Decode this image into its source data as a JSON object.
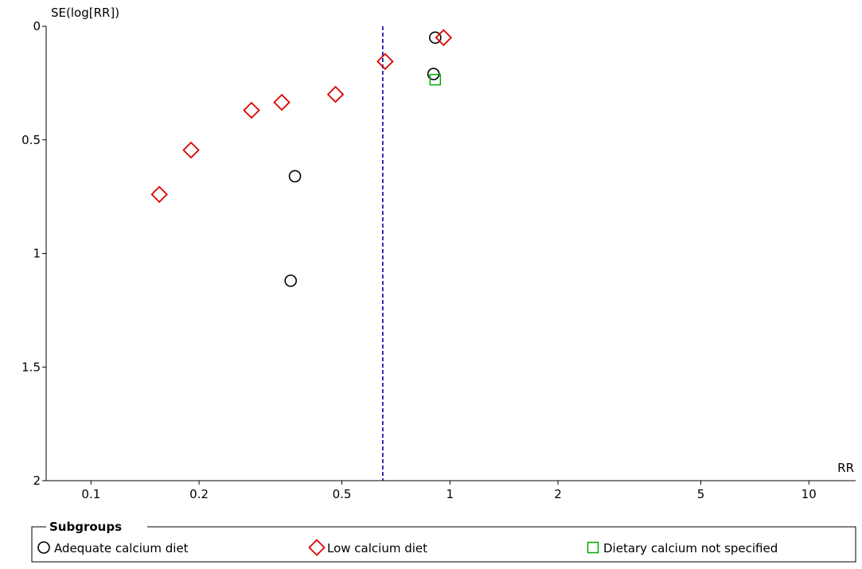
{
  "chart_data": {
    "type": "scatter",
    "subtype": "funnel-plot",
    "xlabel": "RR",
    "ylabel": "SE(log[RR])",
    "x_scale": "log",
    "xlim": [
      0.075,
      13.5
    ],
    "ylim": [
      0,
      2
    ],
    "y_reversed": true,
    "x_ticks": [
      0.1,
      0.2,
      0.5,
      1,
      2,
      5,
      10
    ],
    "x_tick_labels": [
      "0.1",
      "0.2",
      "0.5",
      "1",
      "2",
      "5",
      "10"
    ],
    "y_ticks": [
      0,
      0.5,
      1,
      1.5,
      2
    ],
    "y_tick_labels": [
      "0",
      "0.5",
      "1",
      "1.5",
      "2"
    ],
    "reference_line": {
      "x": 0.65,
      "style": "dashed",
      "color": "#0000aa"
    },
    "legend": {
      "title": "Subgroups",
      "placement": "bottom"
    },
    "series": [
      {
        "name": "Adequate calcium diet",
        "marker": "circle",
        "color": "#000000",
        "points": [
          {
            "x": 0.91,
            "y": 0.05
          },
          {
            "x": 0.9,
            "y": 0.21
          },
          {
            "x": 0.37,
            "y": 0.66
          },
          {
            "x": 0.36,
            "y": 1.12
          }
        ]
      },
      {
        "name": "Low calcium diet",
        "marker": "diamond",
        "color": "#dd0000",
        "points": [
          {
            "x": 0.96,
            "y": 0.05
          },
          {
            "x": 0.66,
            "y": 0.155
          },
          {
            "x": 0.48,
            "y": 0.3
          },
          {
            "x": 0.34,
            "y": 0.335
          },
          {
            "x": 0.28,
            "y": 0.37
          },
          {
            "x": 0.19,
            "y": 0.545
          },
          {
            "x": 0.155,
            "y": 0.74
          }
        ]
      },
      {
        "name": "Dietary calcium not specified",
        "marker": "square",
        "color": "#00aa00",
        "points": [
          {
            "x": 0.91,
            "y": 0.235
          }
        ]
      }
    ]
  }
}
